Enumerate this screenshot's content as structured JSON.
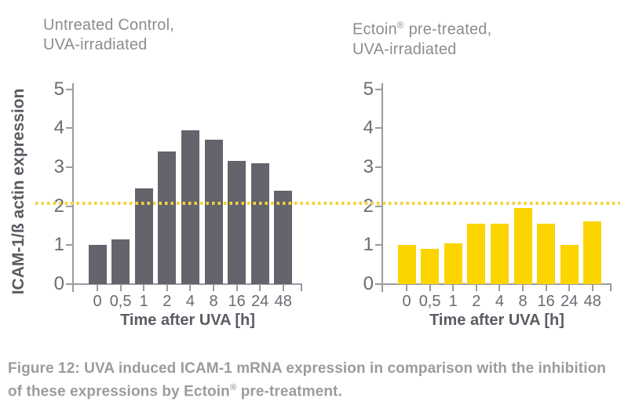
{
  "colors": {
    "bar_gray": "#64646d",
    "bar_yellow": "#fcd400",
    "reference_yellow": "#f3d337",
    "axis_line": "#9b9ba1",
    "tick_text": "#6b6b73",
    "title_text": "#8d8d8d",
    "axis_label_text": "#5b5b64",
    "caption_text": "#9c9c9c"
  },
  "chart_data": [
    {
      "type": "bar",
      "title_line1": "Untreated Control,",
      "title_line2": "UVA-irradiated",
      "categories": [
        "0",
        "0,5",
        "1",
        "2",
        "4",
        "8",
        "16",
        "24",
        "48"
      ],
      "values": [
        1.0,
        1.15,
        2.45,
        3.4,
        3.95,
        3.7,
        3.15,
        3.1,
        2.4
      ],
      "bar_color": "#64646d",
      "xlabel": "Time after UVA [h]",
      "ylabel": "ICAM-1/ß actin expression",
      "ytick_labels": [
        "0",
        "1",
        "2",
        "3",
        "4",
        "5"
      ],
      "ylim": [
        0,
        5
      ],
      "grid": false,
      "reference_line": 2.1
    },
    {
      "type": "bar",
      "title_line1": "Ectoin® pre-treated,",
      "title_line2": "UVA-irradiated",
      "categories": [
        "0",
        "0,5",
        "1",
        "2",
        "4",
        "8",
        "16",
        "24",
        "48"
      ],
      "values": [
        1.0,
        0.9,
        1.05,
        1.55,
        1.55,
        1.95,
        1.55,
        1.0,
        1.6
      ],
      "bar_color": "#fcd400",
      "xlabel": "Time after UVA [h]",
      "ylabel": "ICAM-1/ß actin expression",
      "ytick_labels": [
        "0",
        "1",
        "2",
        "3",
        "4",
        "5"
      ],
      "ylim": [
        0,
        5
      ],
      "grid": false,
      "reference_line": 2.1
    }
  ],
  "figure": {
    "caption": "Figure 12: UVA induced ICAM-1 mRNA expression in comparison with the inhibition of these expressions by Ectoin® pre-treatment."
  }
}
